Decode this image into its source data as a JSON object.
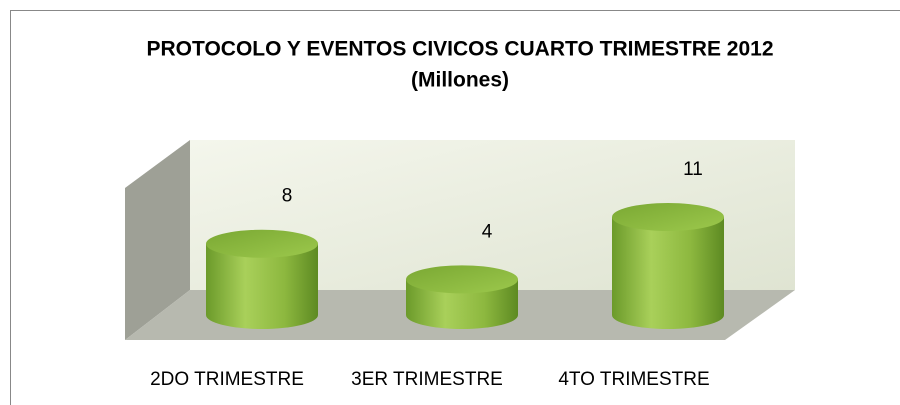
{
  "chart_data": {
    "type": "bar3d-cylinder",
    "title": "PROTOCOLO Y EVENTOS CIVICOS CUARTO TRIMESTRE 2012",
    "subtitle": "(Millones)",
    "categories": [
      "2DO TRIMESTRE",
      "3ER TRIMESTRE",
      "4TO TRIMESTRE"
    ],
    "values": [
      8,
      4,
      11
    ],
    "color": "#8db83f"
  }
}
